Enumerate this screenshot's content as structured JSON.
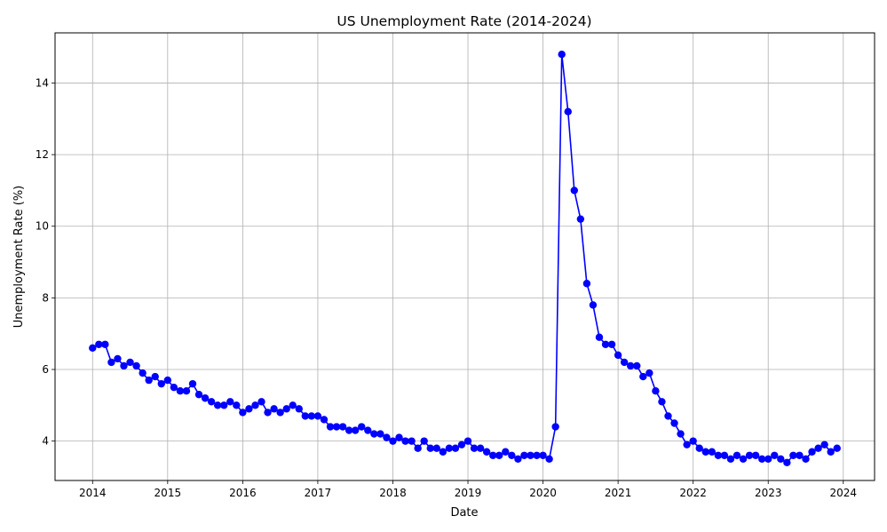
{
  "chart_data": {
    "type": "line",
    "title": "US Unemployment Rate (2014-2024)",
    "xlabel": "Date",
    "ylabel": "Unemployment Rate (%)",
    "x_start": "2014-01",
    "x_ticks": [
      "2014",
      "2015",
      "2016",
      "2017",
      "2018",
      "2019",
      "2020",
      "2021",
      "2022",
      "2023",
      "2024"
    ],
    "y_ticks": [
      4,
      6,
      8,
      10,
      12,
      14
    ],
    "ylim": [
      2.9,
      15.4
    ],
    "xlim": [
      "2013-07",
      "2024-06"
    ],
    "grid": true,
    "marker": "circle",
    "color": "#0000ff",
    "series": [
      {
        "name": "",
        "x": [
          "2014-01",
          "2014-02",
          "2014-03",
          "2014-04",
          "2014-05",
          "2014-06",
          "2014-07",
          "2014-08",
          "2014-09",
          "2014-10",
          "2014-11",
          "2014-12",
          "2015-01",
          "2015-02",
          "2015-03",
          "2015-04",
          "2015-05",
          "2015-06",
          "2015-07",
          "2015-08",
          "2015-09",
          "2015-10",
          "2015-11",
          "2015-12",
          "2016-01",
          "2016-02",
          "2016-03",
          "2016-04",
          "2016-05",
          "2016-06",
          "2016-07",
          "2016-08",
          "2016-09",
          "2016-10",
          "2016-11",
          "2016-12",
          "2017-01",
          "2017-02",
          "2017-03",
          "2017-04",
          "2017-05",
          "2017-06",
          "2017-07",
          "2017-08",
          "2017-09",
          "2017-10",
          "2017-11",
          "2017-12",
          "2018-01",
          "2018-02",
          "2018-03",
          "2018-04",
          "2018-05",
          "2018-06",
          "2018-07",
          "2018-08",
          "2018-09",
          "2018-10",
          "2018-11",
          "2018-12",
          "2019-01",
          "2019-02",
          "2019-03",
          "2019-04",
          "2019-05",
          "2019-06",
          "2019-07",
          "2019-08",
          "2019-09",
          "2019-10",
          "2019-11",
          "2019-12",
          "2020-01",
          "2020-02",
          "2020-03",
          "2020-04",
          "2020-05",
          "2020-06",
          "2020-07",
          "2020-08",
          "2020-09",
          "2020-10",
          "2020-11",
          "2020-12",
          "2021-01",
          "2021-02",
          "2021-03",
          "2021-04",
          "2021-05",
          "2021-06",
          "2021-07",
          "2021-08",
          "2021-09",
          "2021-10",
          "2021-11",
          "2021-12",
          "2022-01",
          "2022-02",
          "2022-03",
          "2022-04",
          "2022-05",
          "2022-06",
          "2022-07",
          "2022-08",
          "2022-09",
          "2022-10",
          "2022-11",
          "2022-12",
          "2023-01",
          "2023-02",
          "2023-03",
          "2023-04",
          "2023-05",
          "2023-06",
          "2023-07",
          "2023-08",
          "2023-09",
          "2023-10",
          "2023-11",
          "2023-12"
        ],
        "values": [
          6.6,
          6.7,
          6.7,
          6.2,
          6.3,
          6.1,
          6.2,
          6.1,
          5.9,
          5.7,
          5.8,
          5.6,
          5.7,
          5.5,
          5.4,
          5.4,
          5.6,
          5.3,
          5.2,
          5.1,
          5.0,
          5.0,
          5.1,
          5.0,
          4.8,
          4.9,
          5.0,
          5.1,
          4.8,
          4.9,
          4.8,
          4.9,
          5.0,
          4.9,
          4.7,
          4.7,
          4.7,
          4.6,
          4.4,
          4.4,
          4.4,
          4.3,
          4.3,
          4.4,
          4.3,
          4.2,
          4.2,
          4.1,
          4.0,
          4.1,
          4.0,
          4.0,
          3.8,
          4.0,
          3.8,
          3.8,
          3.7,
          3.8,
          3.8,
          3.9,
          4.0,
          3.8,
          3.8,
          3.7,
          3.6,
          3.6,
          3.7,
          3.6,
          3.5,
          3.6,
          3.6,
          3.6,
          3.6,
          3.5,
          4.4,
          14.8,
          13.2,
          11.0,
          10.2,
          8.4,
          7.8,
          6.9,
          6.7,
          6.7,
          6.4,
          6.2,
          6.1,
          6.1,
          5.8,
          5.9,
          5.4,
          5.1,
          4.7,
          4.5,
          4.2,
          3.9,
          4.0,
          3.8,
          3.7,
          3.7,
          3.6,
          3.6,
          3.5,
          3.6,
          3.5,
          3.6,
          3.6,
          3.5,
          3.5,
          3.6,
          3.5,
          3.4,
          3.6,
          3.6,
          3.5,
          3.7,
          3.8,
          3.9,
          3.7,
          3.8
        ]
      }
    ]
  }
}
